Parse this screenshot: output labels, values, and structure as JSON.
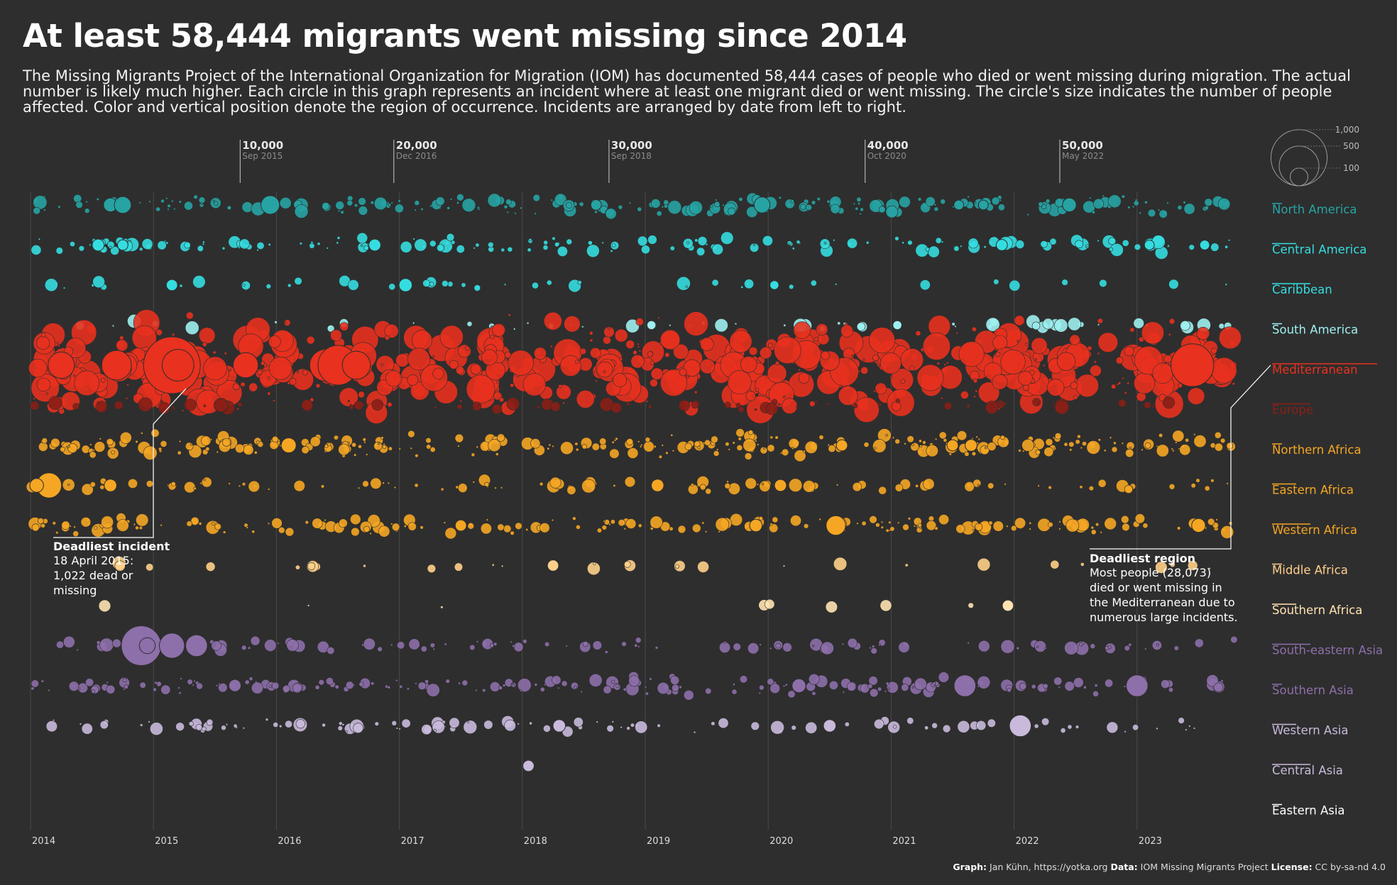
{
  "title": "At least 58,444 migrants went missing since 2014",
  "subtitle": "The Missing Migrants Project of the International Organization for Migration (IOM) has documented 58,444 cases of people who died or went missing during migration. The actual number is likely much higher. Each circle in this graph represents an incident where at least one migrant died or went missing. The circle's size indicates the number of people affected. Color and vertical position denote the region of occurrence. Incidents are arranged by date from left to right.",
  "footer": {
    "graph_label": "Graph:",
    "graph_value": "Jan Kühn, https://yotka.org",
    "data_label": "Data:",
    "data_value": "IOM Missing Migrants Project",
    "license_label": "License:",
    "license_value": "CC by-sa-nd 4.0"
  },
  "colors": {
    "background": "#2e2e2e",
    "americas": "#27a3a3",
    "central_america": "#35dde0",
    "mediterranean": "#e8311e",
    "europe": "#8a1f16",
    "africa": "#f5a623",
    "asia_purple": "#8d6faa",
    "asia_light": "#c9badb",
    "grid": "#4a4a4a"
  },
  "chart_data": {
    "type": "scatter",
    "encoding": "beeswarm of incidents; circle area = number dead or missing",
    "x_axis": {
      "tick_labels": [
        "2014",
        "2015",
        "2016",
        "2017",
        "2018",
        "2019",
        "2020",
        "2021",
        "2022",
        "2023"
      ],
      "range": [
        "2014-01-01",
        "2023-12-31"
      ]
    },
    "cumulative_markers": [
      {
        "count": "10,000",
        "date": "Sep 2015",
        "x": "2015-09-15"
      },
      {
        "count": "20,000",
        "date": "Dec 2016",
        "x": "2016-12-15"
      },
      {
        "count": "30,000",
        "date": "Sep 2018",
        "x": "2018-09-15"
      },
      {
        "count": "40,000",
        "date": "Oct 2020",
        "x": "2020-10-15"
      },
      {
        "count": "50,000",
        "date": "May 2022",
        "x": "2022-05-15"
      }
    ],
    "size_legend": [
      {
        "label": "1,000",
        "value": 1000
      },
      {
        "label": "500",
        "value": 500
      },
      {
        "label": "100",
        "value": 100
      }
    ],
    "regions": [
      {
        "name": "North America",
        "color": "#27a3a3",
        "density": 0.65,
        "bigs": [
          [
            2014.65,
            60
          ],
          [
            2014.75,
            90
          ],
          [
            2015.95,
            110
          ],
          [
            2018.6,
            35
          ],
          [
            2019.95,
            80
          ],
          [
            2021.55,
            30
          ],
          [
            2021.75,
            30
          ],
          [
            2022.45,
            60
          ]
        ]
      },
      {
        "name": "Central America",
        "color": "#35dde0",
        "density": 0.45,
        "bigs": [
          [
            2014.55,
            45
          ],
          [
            2014.75,
            35
          ],
          [
            2016.8,
            45
          ],
          [
            2021.9,
            40
          ],
          [
            2023.1,
            30
          ],
          [
            2023.55,
            30
          ]
        ]
      },
      {
        "name": "Caribbean",
        "color": "#35dde0",
        "density": 0.12,
        "bigs": [
          [
            2015.15,
            40
          ],
          [
            2017.05,
            55
          ],
          [
            2020.05,
            25
          ]
        ]
      },
      {
        "name": "South America",
        "color": "#9feff0",
        "density": 0.15,
        "bigs": [
          [
            2019.05,
            25
          ],
          [
            2021.05,
            25
          ]
        ]
      },
      {
        "name": "Mediterranean",
        "color": "#e8311e",
        "density": 1.0,
        "bigs": [
          [
            2014.7,
            280
          ],
          [
            2015.15,
            1022
          ],
          [
            2015.2,
            320
          ],
          [
            2016.4,
            320
          ],
          [
            2016.5,
            500
          ],
          [
            2016.65,
            250
          ],
          [
            2023.45,
            580
          ],
          [
            2015.75,
            200
          ],
          [
            2014.25,
            220
          ]
        ]
      },
      {
        "name": "Europe",
        "color": "#8a1f16",
        "density": 0.2,
        "bigs": [
          [
            2015.55,
            60
          ],
          [
            2016.25,
            40
          ]
        ]
      },
      {
        "name": "Northern Africa",
        "color": "#f5a623",
        "density": 0.85,
        "bigs": [
          [
            2016.1,
            70
          ],
          [
            2021.5,
            40
          ],
          [
            2021.65,
            45
          ],
          [
            2020.6,
            40
          ]
        ]
      },
      {
        "name": "Eastern Africa",
        "color": "#f5a623",
        "density": 0.3,
        "bigs": [
          [
            2014.15,
            200
          ],
          [
            2014.05,
            60
          ],
          [
            2014.65,
            50
          ],
          [
            2019.1,
            50
          ],
          [
            2020.1,
            45
          ]
        ]
      },
      {
        "name": "Western Africa",
        "color": "#f5a623",
        "density": 0.55,
        "bigs": [
          [
            2020.55,
            120
          ],
          [
            2019.9,
            50
          ],
          [
            2017.5,
            40
          ],
          [
            2023.5,
            60
          ]
        ]
      },
      {
        "name": "Middle Africa",
        "color": "#ffd08a",
        "density": 0.08,
        "bigs": [
          [
            2018.25,
            40
          ]
        ]
      },
      {
        "name": "Southern Africa",
        "color": "#ffe3b3",
        "density": 0.02,
        "bigs": [
          [
            2021.95,
            40
          ]
        ]
      },
      {
        "name": "South-eastern Asia",
        "color": "#8d6faa",
        "density": 0.3,
        "bigs": [
          [
            2014.9,
            500
          ],
          [
            2015.15,
            200
          ],
          [
            2015.35,
            150
          ],
          [
            2014.95,
            80
          ]
        ]
      },
      {
        "name": "Southern Asia",
        "color": "#8d6faa",
        "density": 0.55,
        "bigs": [
          [
            2021.6,
            150
          ],
          [
            2023.0,
            150
          ],
          [
            2020.25,
            60
          ]
        ]
      },
      {
        "name": "Western Asia",
        "color": "#c9badb",
        "density": 0.3,
        "bigs": [
          [
            2022.05,
            150
          ],
          [
            2018.3,
            50
          ],
          [
            2020.5,
            50
          ]
        ]
      },
      {
        "name": "Central Asia",
        "color": "#c9badb",
        "density": 0.0,
        "bigs": [
          [
            2018.05,
            40
          ]
        ]
      },
      {
        "name": "Eastern Asia",
        "color": "#ffffff",
        "density": 0.0,
        "bigs": []
      }
    ],
    "annotations": [
      {
        "title": "Deadliest incident",
        "lines": [
          "18 April 2015:",
          "1,022 dead or",
          "missing"
        ]
      },
      {
        "title": "Deadliest region",
        "lines": [
          "Most people (28,073)",
          "died or went missing in",
          "the Mediterranean due to",
          "numerous large incidents."
        ]
      }
    ]
  }
}
